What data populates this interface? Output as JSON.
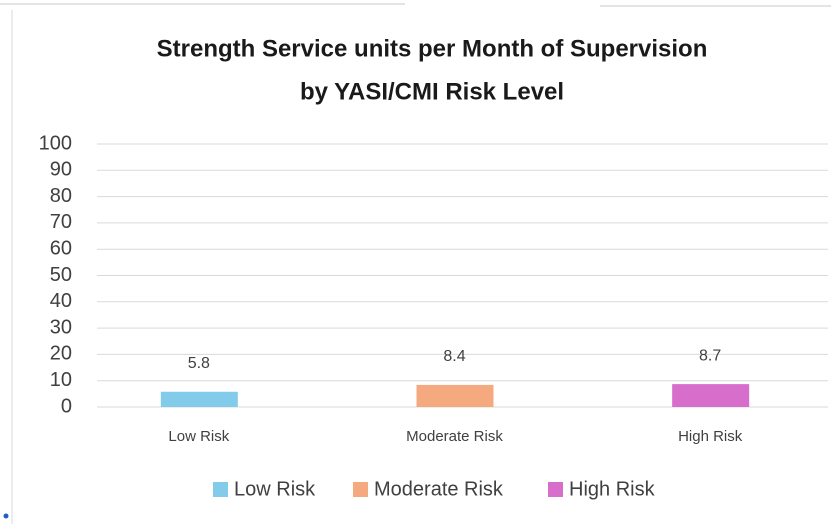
{
  "chart_data": {
    "type": "bar",
    "title": [
      "Strength Service units per Month of Supervision",
      "by YASI/CMI Risk Level"
    ],
    "categories": [
      "Low Risk",
      "Moderate Risk",
      "High Risk"
    ],
    "series": [
      {
        "name": "Low Risk",
        "color": "#83cbeb",
        "values": [
          5.8,
          null,
          null
        ]
      },
      {
        "name": "Moderate Risk",
        "color": "#f4a97f",
        "values": [
          null,
          8.4,
          null
        ]
      },
      {
        "name": "High Risk",
        "color": "#d86ecc",
        "values": [
          null,
          null,
          8.7
        ]
      }
    ],
    "ylim": [
      0,
      100
    ],
    "yticks": [
      0,
      10,
      20,
      30,
      40,
      50,
      60,
      70,
      80,
      90,
      100
    ],
    "grid": true,
    "legend": "bottom"
  }
}
